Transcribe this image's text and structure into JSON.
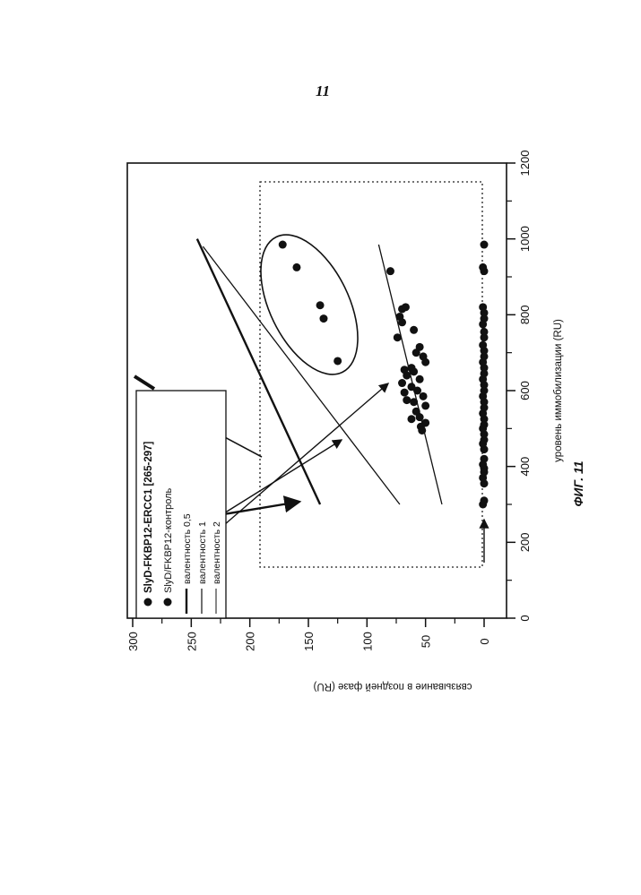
{
  "page_number": "11",
  "figure_caption": "ФИГ. 11",
  "chart_data": {
    "type": "scatter",
    "orientation": "rotated 90° counter-clockwise",
    "xlabel": "уровень иммобилизации (RU)",
    "ylabel": "связывание в поздней фазе (RU)",
    "xlim": [
      0,
      1200
    ],
    "ylim": [
      0,
      300
    ],
    "x_ticks": [
      "0",
      "200",
      "400",
      "600",
      "800",
      "1000",
      "1200"
    ],
    "y_ticks": [
      "0",
      "50",
      "100",
      "150",
      "200",
      "250",
      "300"
    ],
    "grid": false,
    "legend_position": "upper-left",
    "series": [
      {
        "name": "SlyD-FKBP12-ERCC1 [265-297]",
        "marker": "filled-circle",
        "points": [
          [
            985,
            172
          ],
          [
            925,
            160
          ],
          [
            825,
            140
          ],
          [
            790,
            137
          ],
          [
            678,
            125
          ],
          [
            915,
            80
          ],
          [
            795,
            72
          ],
          [
            815,
            70
          ],
          [
            820,
            67
          ],
          [
            780,
            70
          ],
          [
            760,
            60
          ],
          [
            740,
            74
          ],
          [
            715,
            55
          ],
          [
            700,
            58
          ],
          [
            690,
            52
          ],
          [
            675,
            50
          ],
          [
            660,
            62
          ],
          [
            650,
            60
          ],
          [
            640,
            66
          ],
          [
            630,
            55
          ],
          [
            620,
            70
          ],
          [
            600,
            57
          ],
          [
            595,
            68
          ],
          [
            585,
            52
          ],
          [
            570,
            60
          ],
          [
            560,
            50
          ],
          [
            545,
            58
          ],
          [
            530,
            55
          ],
          [
            515,
            50
          ],
          [
            505,
            54
          ],
          [
            495,
            53
          ],
          [
            655,
            68
          ],
          [
            610,
            62
          ],
          [
            575,
            66
          ],
          [
            525,
            62
          ]
        ]
      },
      {
        "name": "SlyD/FKBP12-контроль",
        "marker": "filled-circle",
        "points": [
          [
            300,
            1
          ],
          [
            310,
            0
          ],
          [
            355,
            0
          ],
          [
            370,
            1
          ],
          [
            385,
            0
          ],
          [
            395,
            0
          ],
          [
            405,
            1
          ],
          [
            420,
            0
          ],
          [
            445,
            0
          ],
          [
            460,
            1
          ],
          [
            470,
            0
          ],
          [
            485,
            0
          ],
          [
            500,
            1
          ],
          [
            510,
            0
          ],
          [
            525,
            0
          ],
          [
            540,
            1
          ],
          [
            555,
            0
          ],
          [
            570,
            0
          ],
          [
            585,
            1
          ],
          [
            600,
            0
          ],
          [
            615,
            0
          ],
          [
            630,
            1
          ],
          [
            645,
            0
          ],
          [
            660,
            0
          ],
          [
            675,
            1
          ],
          [
            690,
            0
          ],
          [
            705,
            0
          ],
          [
            720,
            1
          ],
          [
            740,
            0
          ],
          [
            755,
            0
          ],
          [
            775,
            1
          ],
          [
            790,
            0
          ],
          [
            805,
            0
          ],
          [
            820,
            1
          ],
          [
            915,
            0
          ],
          [
            925,
            1
          ],
          [
            985,
            0
          ]
        ]
      },
      {
        "name": "валентность 0,5",
        "type": "line",
        "points": [
          [
            300,
            140
          ],
          [
            1000,
            245
          ]
        ]
      },
      {
        "name": "валентность 1",
        "type": "line",
        "points": [
          [
            300,
            72
          ],
          [
            980,
            240
          ]
        ]
      },
      {
        "name": "валентность 2",
        "type": "line",
        "points": [
          [
            300,
            36
          ],
          [
            985,
            90
          ]
        ]
      }
    ]
  }
}
